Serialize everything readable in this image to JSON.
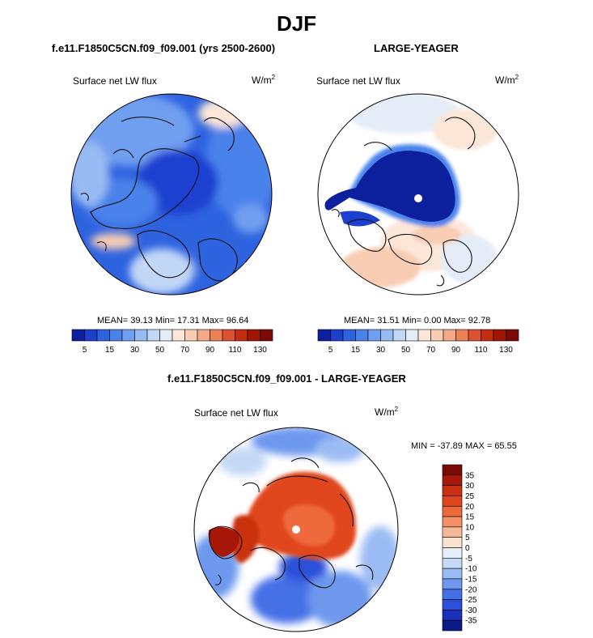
{
  "title": "DJF",
  "panels": [
    {
      "case_title": "f.e11.F1850C5CN.f09_f09.001 (yrs 2500-2600)",
      "variable": "Surface net LW flux",
      "units_base": "W/m",
      "units_exp": "2",
      "stats": "MEAN=  39.13  Min=  17.31  Max=  96.64"
    },
    {
      "case_title": "LARGE-YEAGER",
      "variable": "Surface net LW flux",
      "units_base": "W/m",
      "units_exp": "2",
      "stats": "MEAN=  31.51  Min=   0.00  Max=  92.78"
    },
    {
      "case_title": "f.e11.F1850C5CN.f09_f09.001 - LARGE-YEAGER",
      "variable": "Surface net LW flux",
      "units_base": "W/m",
      "units_exp": "2",
      "stats": "MIN = -37.89 MAX =  65.55"
    }
  ],
  "chart_data": [
    {
      "type": "heatmap",
      "projection": "north-polar-stereographic",
      "title": "f.e11.F1850C5CN.f09_f09.001 (yrs 2500-2600)",
      "variable": "Surface net LW flux",
      "units": "W/m2",
      "summary": {
        "mean": 39.13,
        "min": 17.31,
        "max": 96.64
      },
      "colorbar": {
        "orientation": "horizontal",
        "levels": [
          5,
          10,
          15,
          20,
          30,
          40,
          50,
          60,
          70,
          80,
          90,
          100,
          110,
          120,
          130
        ],
        "tick_labels": [
          "5",
          "15",
          "30",
          "50",
          "70",
          "90",
          "110",
          "130"
        ],
        "colors": [
          "#0c1f9c",
          "#1c3fd0",
          "#2e63e0",
          "#4a82ea",
          "#6f9ff0",
          "#99bbf3",
          "#c2d6f6",
          "#e4ecf8",
          "#fbe6d8",
          "#f8cdb4",
          "#f2aa88",
          "#ec8058",
          "#dc5230",
          "#c42c10",
          "#a01606",
          "#7a0a05"
        ]
      }
    },
    {
      "type": "heatmap",
      "projection": "north-polar-stereographic",
      "title": "LARGE-YEAGER",
      "variable": "Surface net LW flux",
      "units": "W/m2",
      "summary": {
        "mean": 31.51,
        "min": 0.0,
        "max": 92.78
      },
      "colorbar": {
        "orientation": "horizontal",
        "levels": [
          5,
          10,
          15,
          20,
          30,
          40,
          50,
          60,
          70,
          80,
          90,
          100,
          110,
          120,
          130
        ],
        "tick_labels": [
          "5",
          "15",
          "30",
          "50",
          "70",
          "90",
          "110",
          "130"
        ],
        "colors": [
          "#0c1f9c",
          "#1c3fd0",
          "#2e63e0",
          "#4a82ea",
          "#6f9ff0",
          "#99bbf3",
          "#c2d6f6",
          "#e4ecf8",
          "#fbe6d8",
          "#f8cdb4",
          "#f2aa88",
          "#ec8058",
          "#dc5230",
          "#c42c10",
          "#a01606",
          "#7a0a05"
        ]
      }
    },
    {
      "type": "heatmap",
      "projection": "north-polar-stereographic",
      "title": "f.e11.F1850C5CN.f09_f09.001 - LARGE-YEAGER",
      "variable": "Surface net LW flux",
      "units": "W/m2",
      "summary": {
        "min": -37.89,
        "max": 65.55
      },
      "colorbar": {
        "orientation": "vertical",
        "levels": [
          35,
          30,
          25,
          20,
          15,
          10,
          5,
          0,
          -5,
          -10,
          -15,
          -20,
          -25,
          -30,
          -35
        ],
        "tick_labels": [
          "35",
          "30",
          "25",
          "20",
          "15",
          "10",
          "5",
          "0",
          "-5",
          "-10",
          "-15",
          "-20",
          "-25",
          "-30",
          "-35"
        ],
        "colors": [
          "#7a0a05",
          "#a81808",
          "#c9300f",
          "#e0461c",
          "#ee6a3c",
          "#f59068",
          "#f8b89a",
          "#fbe2d0",
          "#e6eef9",
          "#c5d9f6",
          "#9bbcf3",
          "#6d98ee",
          "#4470e6",
          "#2a4fd8",
          "#1a30b8",
          "#0c1a88"
        ]
      }
    }
  ]
}
